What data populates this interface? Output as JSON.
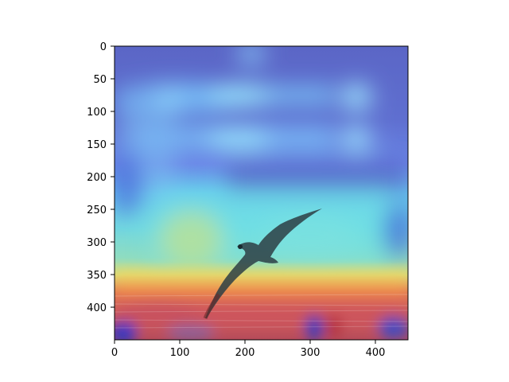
{
  "image": {
    "subject": "bird-over-sea-icon",
    "overlay": "jet-colormap-heatmap"
  },
  "axes": {
    "x_ticks": [
      "0",
      "100",
      "200",
      "300",
      "400"
    ],
    "y_ticks": [
      "0",
      "50",
      "100",
      "150",
      "200",
      "250",
      "300",
      "350",
      "400"
    ]
  },
  "colors": {
    "axis": "#000000",
    "background": "#ffffff"
  }
}
